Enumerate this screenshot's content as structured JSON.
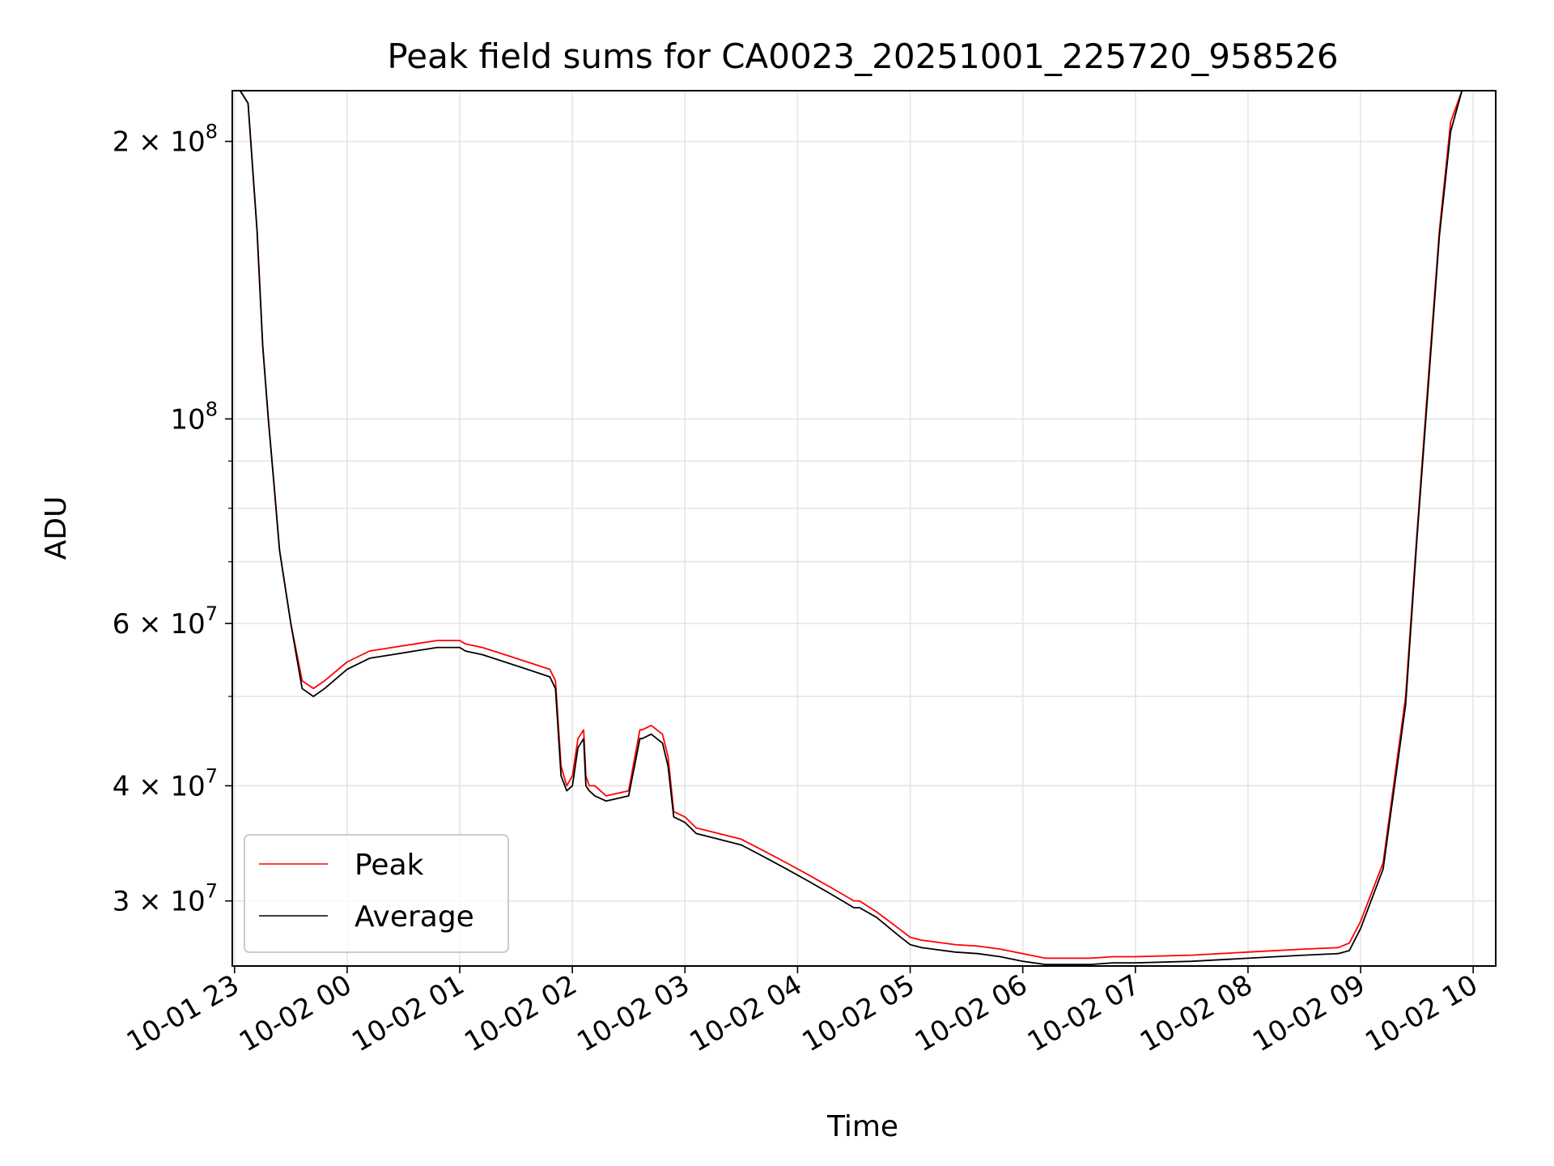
{
  "chart_data": {
    "type": "line",
    "title": "Peak field sums for CA0023_20251001_225720_958526",
    "xlabel": "Time",
    "ylabel": "ADU",
    "yscale": "log",
    "grid": true,
    "legend_position": "lower-left",
    "x_unit": "hours since 10-01 23:00",
    "xlim": [
      -0.02,
      11.2
    ],
    "ylim": [
      25500000,
      227000000
    ],
    "x_ticks": [
      {
        "value": 0,
        "label": "10-01 23"
      },
      {
        "value": 1,
        "label": "10-02 00"
      },
      {
        "value": 2,
        "label": "10-02 01"
      },
      {
        "value": 3,
        "label": "10-02 02"
      },
      {
        "value": 4,
        "label": "10-02 03"
      },
      {
        "value": 5,
        "label": "10-02 04"
      },
      {
        "value": 6,
        "label": "10-02 05"
      },
      {
        "value": 7,
        "label": "10-02 06"
      },
      {
        "value": 8,
        "label": "10-02 07"
      },
      {
        "value": 9,
        "label": "10-02 08"
      },
      {
        "value": 10,
        "label": "10-02 09"
      },
      {
        "value": 11,
        "label": "10-02 10"
      }
    ],
    "y_ticks": [
      {
        "value": 30000000,
        "mantissa": "3",
        "exponent": "7"
      },
      {
        "value": 40000000,
        "mantissa": "4",
        "exponent": "7"
      },
      {
        "value": 60000000,
        "mantissa": "6",
        "exponent": "7"
      },
      {
        "value": 100000000,
        "mantissa": "",
        "exponent": "8"
      },
      {
        "value": 200000000,
        "mantissa": "2",
        "exponent": "8"
      }
    ],
    "y_tick_base": "10",
    "y_tick_times": "×",
    "y_minor_ticks": [
      50000000,
      70000000,
      80000000,
      90000000
    ],
    "series": [
      {
        "name": "Peak",
        "color": "#ff0000",
        "x": [
          0.05,
          0.12,
          0.2,
          0.25,
          0.3,
          0.35,
          0.4,
          0.5,
          0.6,
          0.7,
          0.8,
          1.0,
          1.2,
          1.4,
          1.6,
          1.8,
          1.95,
          2.0,
          2.05,
          2.2,
          2.4,
          2.6,
          2.8,
          2.85,
          2.9,
          2.95,
          3.0,
          3.05,
          3.1,
          3.12,
          3.15,
          3.2,
          3.3,
          3.5,
          3.6,
          3.62,
          3.7,
          3.8,
          3.85,
          3.9,
          4.0,
          4.1,
          4.3,
          4.5,
          4.7,
          4.9,
          5.1,
          5.3,
          5.5,
          5.55,
          5.7,
          5.9,
          6.0,
          6.1,
          6.2,
          6.4,
          6.6,
          6.8,
          7.0,
          7.2,
          7.4,
          7.6,
          7.8,
          8.0,
          8.5,
          9.0,
          9.5,
          9.8,
          9.9,
          10.0,
          10.2,
          10.4,
          10.5,
          10.6,
          10.7,
          10.8,
          10.9,
          10.95,
          11.0,
          11.1
        ],
        "y": [
          227000000,
          220000000,
          160000000,
          120000000,
          100000000,
          85000000,
          72000000,
          60000000,
          52000000,
          51000000,
          52000000,
          54500000,
          56000000,
          56500000,
          57000000,
          57500000,
          57500000,
          57500000,
          57000000,
          56500000,
          55500000,
          54500000,
          53500000,
          52000000,
          42000000,
          40000000,
          41000000,
          45000000,
          46000000,
          41000000,
          40000000,
          40000000,
          39000000,
          39500000,
          46000000,
          46000000,
          46500000,
          45500000,
          43000000,
          37500000,
          37000000,
          36000000,
          35500000,
          35000000,
          34000000,
          33000000,
          32000000,
          31000000,
          30000000,
          30000000,
          29200000,
          28000000,
          27400000,
          27200000,
          27100000,
          26900000,
          26800000,
          26600000,
          26300000,
          26000000,
          26000000,
          26000000,
          26100000,
          26100000,
          26200000,
          26400000,
          26600000,
          26700000,
          27000000,
          28500000,
          33000000,
          50000000,
          75000000,
          110000000,
          160000000,
          210000000,
          227000000,
          227000000,
          227000000,
          227000000
        ]
      },
      {
        "name": "Average",
        "color": "#000000",
        "x": [
          0.05,
          0.12,
          0.2,
          0.25,
          0.3,
          0.35,
          0.4,
          0.5,
          0.6,
          0.7,
          0.8,
          1.0,
          1.2,
          1.4,
          1.6,
          1.8,
          1.95,
          2.0,
          2.05,
          2.2,
          2.4,
          2.6,
          2.8,
          2.85,
          2.9,
          2.95,
          3.0,
          3.05,
          3.1,
          3.12,
          3.15,
          3.2,
          3.3,
          3.5,
          3.6,
          3.62,
          3.7,
          3.8,
          3.85,
          3.9,
          4.0,
          4.1,
          4.3,
          4.5,
          4.7,
          4.9,
          5.1,
          5.3,
          5.5,
          5.55,
          5.7,
          5.9,
          6.0,
          6.1,
          6.2,
          6.4,
          6.6,
          6.8,
          7.0,
          7.2,
          7.4,
          7.6,
          7.8,
          8.0,
          8.5,
          9.0,
          9.5,
          9.8,
          9.9,
          10.0,
          10.2,
          10.4,
          10.5,
          10.6,
          10.7,
          10.8,
          10.9,
          10.95,
          11.0,
          11.1
        ],
        "y": [
          227000000,
          220000000,
          160000000,
          120000000,
          100000000,
          85000000,
          72000000,
          60000000,
          51000000,
          50000000,
          51000000,
          53500000,
          55000000,
          55500000,
          56000000,
          56500000,
          56500000,
          56500000,
          56000000,
          55500000,
          54500000,
          53500000,
          52500000,
          51000000,
          41000000,
          39500000,
          40000000,
          44000000,
          45000000,
          40000000,
          39500000,
          39000000,
          38500000,
          39000000,
          45000000,
          45000000,
          45500000,
          44500000,
          42000000,
          37000000,
          36500000,
          35500000,
          35000000,
          34500000,
          33500000,
          32500000,
          31500000,
          30500000,
          29500000,
          29500000,
          28800000,
          27500000,
          26900000,
          26700000,
          26600000,
          26400000,
          26300000,
          26100000,
          25800000,
          25600000,
          25600000,
          25600000,
          25700000,
          25700000,
          25800000,
          26000000,
          26200000,
          26300000,
          26500000,
          28000000,
          32500000,
          49000000,
          74000000,
          108000000,
          158000000,
          205000000,
          227000000,
          227000000,
          227000000,
          227000000
        ]
      }
    ]
  }
}
